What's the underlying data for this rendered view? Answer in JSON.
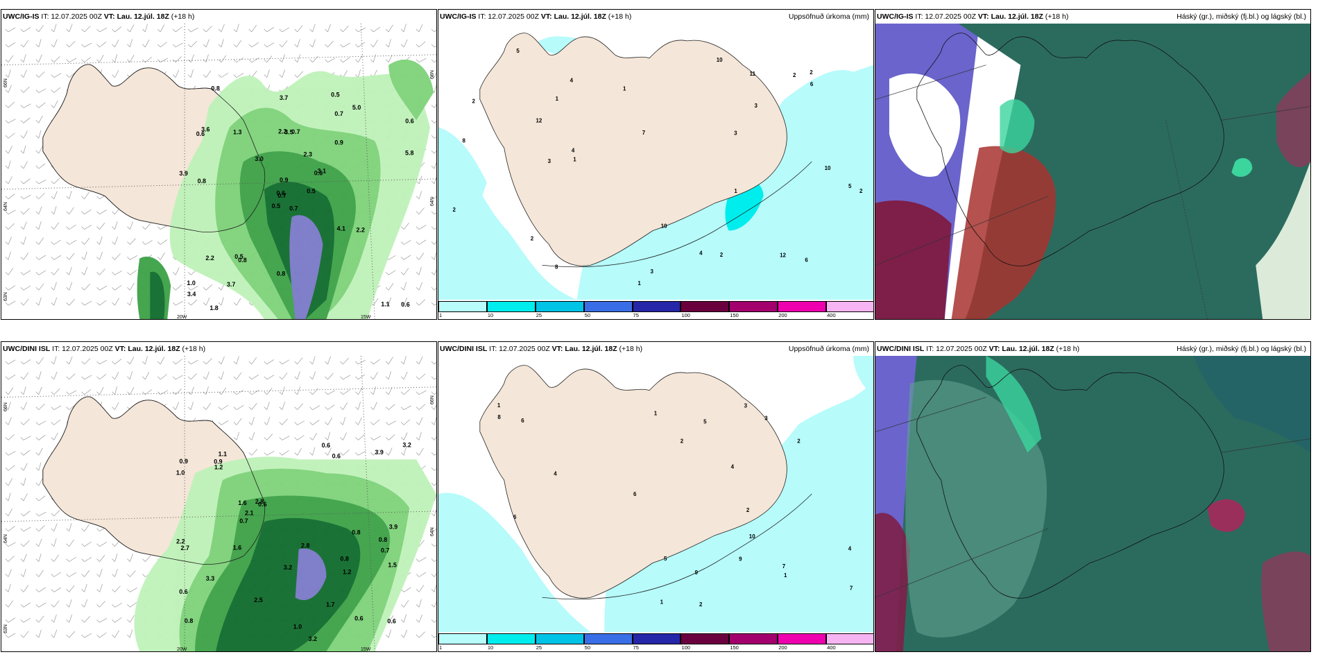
{
  "panels": [
    {
      "model": "UWC/IG-IS",
      "it": "IT: 12.07.2025 00Z",
      "vt_label": "VT:",
      "vt": "Lau. 12.júl. 18Z",
      "lead": "(+18 h)",
      "title_right": ""
    },
    {
      "model": "UWC/IG-IS",
      "it": "IT: 12.07.2025 00Z",
      "vt_label": "VT:",
      "vt": "Lau. 12.júl. 18Z",
      "lead": "(+18 h)",
      "title_right": "Uppsöfnuð úrkoma (mm)"
    },
    {
      "model": "UWC/IG-IS",
      "it": "IT: 12.07.2025 00Z",
      "vt_label": "VT:",
      "vt": "Lau. 12.júl. 18Z",
      "lead": "(+18 h)",
      "title_right": "Háský (gr.), miðský (fj.bl.) og lágský (bl.)"
    },
    {
      "model": "UWC/DINI ISL",
      "it": "IT: 12.07.2025 00Z",
      "vt_label": "VT:",
      "vt": "Lau. 12.júl. 18Z",
      "lead": "(+18 h)",
      "title_right": ""
    },
    {
      "model": "UWC/DINI ISL",
      "it": "IT: 12.07.2025 00Z",
      "vt_label": "VT:",
      "vt": "Lau. 12.júl. 18Z",
      "lead": "(+18 h)",
      "title_right": "Uppsöfnuð úrkoma (mm)"
    },
    {
      "model": "UWC/DINI ISL",
      "it": "IT: 12.07.2025 00Z",
      "vt_label": "VT:",
      "vt": "Lau. 12.júl. 18Z",
      "lead": "(+18 h)",
      "title_right": "Háský (gr.), miðský (fj.bl.) og lágský (bl.)"
    }
  ],
  "axes": {
    "lat66": "66N",
    "lat64": "64N",
    "lat63": "63N",
    "lon20": "20W",
    "lon15": "15W"
  },
  "colorbar": {
    "ticks": [
      "1",
      "10",
      "25",
      "50",
      "75",
      "100",
      "150",
      "200",
      "400"
    ],
    "colors": [
      "#b7fbfb",
      "#00eded",
      "#00c3e6",
      "#3a6ee6",
      "#2626a8",
      "#6b003f",
      "#a3006e",
      "#ee00ae",
      "#f7b4f2"
    ]
  },
  "precip_labels_top": [
    "0.7",
    "0.6",
    "0.7",
    "1.0",
    "0.6",
    "0.8",
    "0.5",
    "0.7",
    "0.7",
    "0.5",
    "0.8",
    "0.6",
    "0.8",
    "0.6",
    "0.5",
    "0.9",
    "1.8",
    "2.2",
    "2.3",
    "2.2",
    "3.0",
    "3.4",
    "3.7",
    "3.5",
    "3.1",
    "2.2",
    "3.6",
    "3.7",
    "3.9",
    "4.1",
    "5.8",
    "0.6",
    "0.8",
    "0.9",
    "1.3",
    "5.0",
    "0.5",
    "1.1"
  ],
  "precip_labels_bottom": [
    "0.8",
    "0.7",
    "0.8",
    "1.1",
    "0.6",
    "0.6",
    "0.6",
    "0.6",
    "1.6",
    "3.2",
    "1.0",
    "2.2",
    "0.9",
    "0.6",
    "2.5",
    "3.9",
    "3.2",
    "2.8",
    "2.8",
    "3.3",
    "3.2",
    "3.9",
    "0.7",
    "1.5",
    "0.6",
    "0.9",
    "1.2",
    "2.7",
    "1.2",
    "0.8",
    "1.0",
    "1.7",
    "2.1",
    "1.6",
    "0.8"
  ],
  "accum_labels_top": [
    "2",
    "1",
    "3",
    "3",
    "2",
    "1",
    "1",
    "1",
    "2",
    "2",
    "5",
    "4",
    "3",
    "2",
    "8",
    "8",
    "4",
    "1",
    "6",
    "4",
    "12",
    "10",
    "7",
    "10",
    "11",
    "12",
    "6",
    "10",
    "5",
    "3",
    "2",
    "2"
  ],
  "accum_labels_bottom": [
    "2",
    "1",
    "1",
    "2",
    "1",
    "1",
    "2",
    "3",
    "4",
    "6",
    "7",
    "5",
    "2",
    "6",
    "7",
    "3",
    "4",
    "9",
    "9",
    "10",
    "8",
    "5",
    "4",
    "6"
  ]
}
